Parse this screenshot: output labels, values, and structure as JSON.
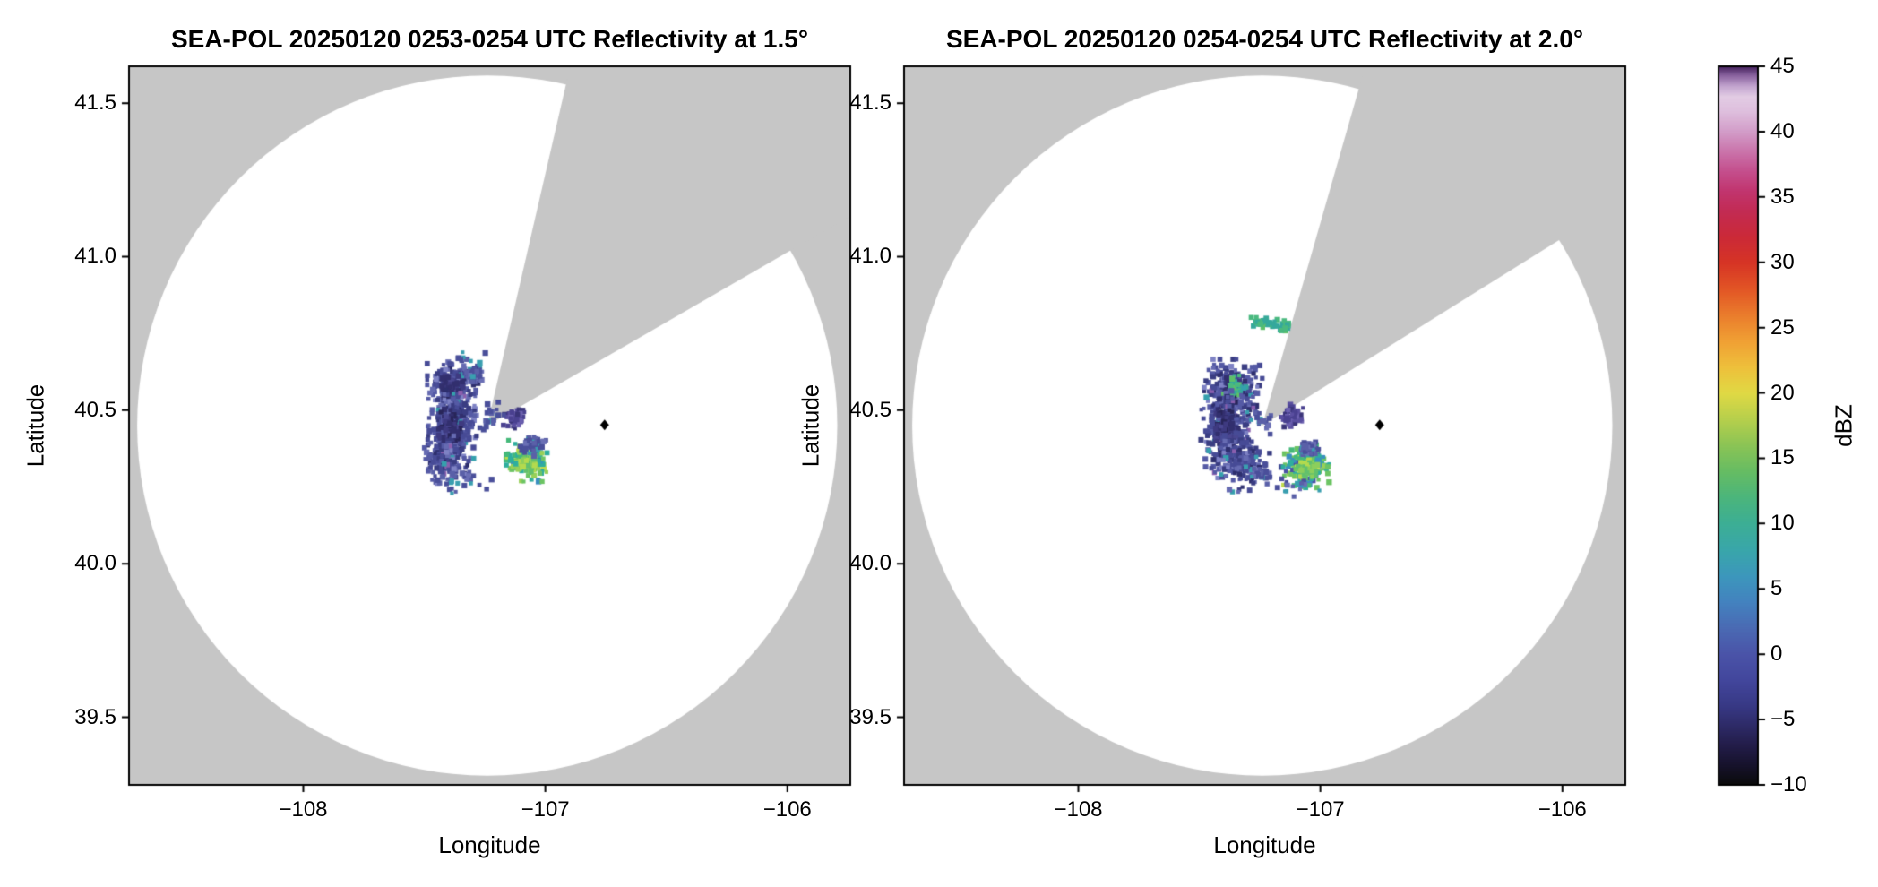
{
  "chart_data": {
    "type": "heatmap",
    "subtype": "radar_ppi_pair",
    "nodata_color": "#c6c6c6",
    "coverage_color": "#ffffff",
    "palettes": {
      "indigo": [
        [
          "#474b96",
          5
        ],
        [
          "#555aa5",
          4
        ],
        [
          "#3a3d82",
          3
        ],
        [
          "#666bb2",
          2
        ],
        [
          "#2e2f6e",
          1.5
        ],
        [
          "#7e82c4",
          1
        ],
        [
          "#35a0ad",
          0.5
        ],
        [
          "#8a5fae",
          0.6
        ]
      ],
      "dark": [
        [
          "#322f6e",
          4
        ],
        [
          "#3e3a80",
          3
        ],
        [
          "#282559",
          2
        ],
        [
          "#4a4791",
          2
        ]
      ],
      "purple_small": [
        [
          "#5a4fa0",
          4
        ],
        [
          "#4a4190",
          3
        ],
        [
          "#6c60b0",
          2
        ],
        [
          "#3a3478",
          1
        ]
      ],
      "green": [
        [
          "#2fae9e",
          3
        ],
        [
          "#45b97a",
          3
        ],
        [
          "#6cc463",
          2.5
        ],
        [
          "#98d058",
          2
        ],
        [
          "#c0dc4e",
          1
        ],
        [
          "#3a8fc0",
          1.5
        ],
        [
          "#4a51a5",
          1
        ]
      ],
      "green_bright": [
        [
          "#8ccf5c",
          3
        ],
        [
          "#b3da4e",
          2
        ],
        [
          "#62c06d",
          2
        ]
      ],
      "sparse_blue": [
        [
          "#4a4f9a",
          3
        ],
        [
          "#5a60a8",
          2
        ],
        [
          "#3a9fb0",
          1
        ],
        [
          "#6a6fb5",
          1
        ]
      ],
      "teal": [
        [
          "#35a89c",
          3
        ],
        [
          "#4ab97f",
          2
        ],
        [
          "#5fc06a",
          1
        ]
      ]
    },
    "panels": [
      {
        "title": "SEA-POL 20250120 0253-0254 UTC Reflectivity at 1.5°",
        "xlabel": "Longitude",
        "ylabel": "Latitude",
        "xlim": [
          -108.72,
          -105.74
        ],
        "ylim": [
          39.28,
          41.62
        ],
        "xticks": [
          {
            "v": -108,
            "label": "−108"
          },
          {
            "v": -107,
            "label": "−107"
          },
          {
            "v": -106,
            "label": "−106"
          }
        ],
        "yticks": [
          {
            "v": 39.5,
            "label": "39.5"
          },
          {
            "v": 40.0,
            "label": "40.0"
          },
          {
            "v": 40.5,
            "label": "40.5"
          },
          {
            "v": 41.0,
            "label": "41.0"
          },
          {
            "v": 41.5,
            "label": "41.5"
          }
        ],
        "radar_center": {
          "lon": -107.24,
          "lat": 40.45
        },
        "range_radius_deg_lat": 1.14,
        "missing_sector_az": [
          13,
          60
        ],
        "marker": {
          "lon": -106.755,
          "lat": 40.452,
          "color": "#000000",
          "shape": "diamond"
        },
        "clusters": [
          {
            "type": "blob",
            "lon": -107.38,
            "lat": 40.575,
            "slon": 0.045,
            "slat": 0.038,
            "n": 240,
            "palette": "indigo"
          },
          {
            "type": "blob",
            "lon": -107.385,
            "lat": 40.58,
            "slon": 0.018,
            "slat": 0.016,
            "n": 70,
            "palette": "dark"
          },
          {
            "type": "blob",
            "lon": -107.29,
            "lat": 40.615,
            "slon": 0.018,
            "slat": 0.012,
            "n": 40,
            "palette": "sparse_blue"
          },
          {
            "type": "blob",
            "lon": -107.32,
            "lat": 40.665,
            "slon": 0.03,
            "slat": 0.012,
            "n": 12,
            "palette": "sparse_blue"
          },
          {
            "type": "blob",
            "lon": -107.385,
            "lat": 40.445,
            "slon": 0.042,
            "slat": 0.05,
            "n": 300,
            "palette": "indigo"
          },
          {
            "type": "blob",
            "lon": -107.395,
            "lat": 40.44,
            "slon": 0.02,
            "slat": 0.026,
            "n": 110,
            "palette": "dark"
          },
          {
            "type": "blob",
            "lon": -107.41,
            "lat": 40.34,
            "slon": 0.04,
            "slat": 0.032,
            "n": 150,
            "palette": "indigo"
          },
          {
            "type": "blob",
            "lon": -107.36,
            "lat": 40.27,
            "slon": 0.06,
            "slat": 0.018,
            "n": 30,
            "palette": "sparse_blue"
          },
          {
            "type": "blob",
            "lon": -107.13,
            "lat": 40.475,
            "slon": 0.018,
            "slat": 0.016,
            "n": 55,
            "palette": "purple_small"
          },
          {
            "type": "blob",
            "lon": -107.23,
            "lat": 40.47,
            "slon": 0.03,
            "slat": 0.025,
            "n": 22,
            "palette": "sparse_blue"
          },
          {
            "type": "blob",
            "lon": -107.07,
            "lat": 40.335,
            "slon": 0.038,
            "slat": 0.028,
            "n": 190,
            "palette": "green"
          },
          {
            "type": "blob",
            "lon": -107.065,
            "lat": 40.325,
            "slon": 0.016,
            "slat": 0.012,
            "n": 55,
            "palette": "green_bright"
          },
          {
            "type": "blob",
            "lon": -107.055,
            "lat": 40.385,
            "slon": 0.024,
            "slat": 0.014,
            "n": 60,
            "palette": "sparse_blue"
          }
        ]
      },
      {
        "title": "SEA-POL 20250120 0254-0254 UTC Reflectivity at 2.0°",
        "xlabel": "Longitude",
        "ylabel": "Latitude",
        "xlim": [
          -108.72,
          -105.74
        ],
        "ylim": [
          39.28,
          41.62
        ],
        "xticks": [
          {
            "v": -108,
            "label": "−108"
          },
          {
            "v": -107,
            "label": "−107"
          },
          {
            "v": -106,
            "label": "−106"
          }
        ],
        "yticks": [
          {
            "v": 39.5,
            "label": "39.5"
          },
          {
            "v": 40.0,
            "label": "40.0"
          },
          {
            "v": 40.5,
            "label": "40.5"
          },
          {
            "v": 41.0,
            "label": "41.0"
          },
          {
            "v": 41.5,
            "label": "41.5"
          }
        ],
        "radar_center": {
          "lon": -107.24,
          "lat": 40.45
        },
        "range_radius_deg_lat": 1.14,
        "missing_sector_az": [
          16,
          58
        ],
        "marker": {
          "lon": -106.755,
          "lat": 40.452,
          "color": "#000000",
          "shape": "diamond"
        },
        "clusters": [
          {
            "type": "blob",
            "lon": -107.36,
            "lat": 40.565,
            "slon": 0.05,
            "slat": 0.042,
            "n": 260,
            "palette": "indigo"
          },
          {
            "type": "blob",
            "lon": -107.36,
            "lat": 40.57,
            "slon": 0.02,
            "slat": 0.018,
            "n": 50,
            "palette": "dark"
          },
          {
            "type": "blob",
            "lon": -107.355,
            "lat": 40.575,
            "slon": 0.02,
            "slat": 0.016,
            "n": 30,
            "palette": "teal"
          },
          {
            "type": "blob",
            "lon": -107.385,
            "lat": 40.44,
            "slon": 0.045,
            "slat": 0.055,
            "n": 300,
            "palette": "indigo"
          },
          {
            "type": "blob",
            "lon": -107.39,
            "lat": 40.445,
            "slon": 0.022,
            "slat": 0.028,
            "n": 110,
            "palette": "dark"
          },
          {
            "type": "blob",
            "lon": -107.33,
            "lat": 40.33,
            "slon": 0.05,
            "slat": 0.04,
            "n": 160,
            "palette": "indigo"
          },
          {
            "type": "blob",
            "lon": -107.25,
            "lat": 40.3,
            "slon": 0.04,
            "slat": 0.02,
            "n": 30,
            "palette": "sparse_blue"
          },
          {
            "type": "blob",
            "lon": -107.12,
            "lat": 40.48,
            "slon": 0.02,
            "slat": 0.018,
            "n": 65,
            "palette": "purple_small"
          },
          {
            "type": "blob",
            "lon": -107.23,
            "lat": 40.47,
            "slon": 0.03,
            "slat": 0.02,
            "n": 20,
            "palette": "sparse_blue"
          },
          {
            "type": "blob",
            "lon": -107.06,
            "lat": 40.32,
            "slon": 0.04,
            "slat": 0.03,
            "n": 210,
            "palette": "green"
          },
          {
            "type": "blob",
            "lon": -107.055,
            "lat": 40.31,
            "slon": 0.018,
            "slat": 0.013,
            "n": 60,
            "palette": "green_bright"
          },
          {
            "type": "blob",
            "lon": -107.045,
            "lat": 40.375,
            "slon": 0.022,
            "slat": 0.013,
            "n": 45,
            "palette": "sparse_blue"
          },
          {
            "type": "blob",
            "lon": -107.1,
            "lat": 40.255,
            "slon": 0.05,
            "slat": 0.015,
            "n": 18,
            "palette": "sparse_blue"
          },
          {
            "type": "arc",
            "az1": -6,
            "az2": 16,
            "radius": 0.335,
            "jitter": 0.008,
            "n": 55,
            "palette": "teal"
          }
        ]
      }
    ],
    "colorbar": {
      "label": "dBZ",
      "vmin": -10,
      "vmax": 45,
      "ticks": [
        {
          "v": -10,
          "label": "−10"
        },
        {
          "v": -5,
          "label": "−5"
        },
        {
          "v": 0,
          "label": "0"
        },
        {
          "v": 5,
          "label": "5"
        },
        {
          "v": 10,
          "label": "10"
        },
        {
          "v": 15,
          "label": "15"
        },
        {
          "v": 20,
          "label": "20"
        },
        {
          "v": 25,
          "label": "25"
        },
        {
          "v": 30,
          "label": "30"
        },
        {
          "v": 35,
          "label": "35"
        },
        {
          "v": 40,
          "label": "40"
        },
        {
          "v": 45,
          "label": "45"
        }
      ],
      "stops": [
        [
          -10,
          "#0a0a0a"
        ],
        [
          -8.5,
          "#16122b"
        ],
        [
          -7,
          "#221c48"
        ],
        [
          -5.5,
          "#2d2a66"
        ],
        [
          -4,
          "#373884"
        ],
        [
          -2,
          "#42469c"
        ],
        [
          0,
          "#4a53a8"
        ],
        [
          2,
          "#4a6ab3"
        ],
        [
          4,
          "#4382bf"
        ],
        [
          6,
          "#3c97bc"
        ],
        [
          8,
          "#39a6aa"
        ],
        [
          10,
          "#3cae95"
        ],
        [
          12,
          "#4bb57c"
        ],
        [
          14,
          "#66bc63"
        ],
        [
          16,
          "#8bc455"
        ],
        [
          18,
          "#b6cf4c"
        ],
        [
          20,
          "#e0d944"
        ],
        [
          22,
          "#eec03b"
        ],
        [
          24,
          "#f0a034"
        ],
        [
          26,
          "#ea7c2c"
        ],
        [
          28,
          "#e25525"
        ],
        [
          30,
          "#d63425"
        ],
        [
          32,
          "#cb2938"
        ],
        [
          34,
          "#c22b55"
        ],
        [
          35.5,
          "#c1356f"
        ],
        [
          37,
          "#c44f8d"
        ],
        [
          38.5,
          "#ca74ab"
        ],
        [
          40,
          "#d29cc8"
        ],
        [
          41.5,
          "#debedd"
        ],
        [
          42.7,
          "#e2cce4"
        ],
        [
          43.5,
          "#c3a4cf"
        ],
        [
          44.3,
          "#8b64a0"
        ],
        [
          45,
          "#472460"
        ]
      ]
    }
  }
}
